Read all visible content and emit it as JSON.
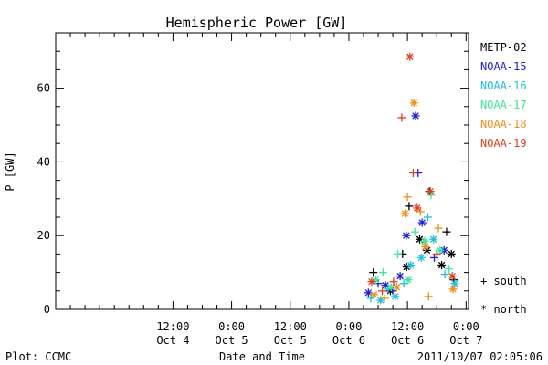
{
  "chart_data": {
    "type": "scatter",
    "title": "Hemispheric Power [GW]",
    "xlabel": "Date and Time",
    "ylabel": "P [GW]",
    "ylim": [
      0,
      75
    ],
    "yticks": [
      0,
      20,
      40,
      60
    ],
    "xlim": [
      "2011-10-03T12:00",
      "2011-10-07T00:30"
    ],
    "xticks": [
      {
        "at": "2011-10-04T12:00",
        "line1": "12:00",
        "line2": "Oct 4"
      },
      {
        "at": "2011-10-05T00:00",
        "line1": "0:00",
        "line2": "Oct 5"
      },
      {
        "at": "2011-10-05T12:00",
        "line1": "12:00",
        "line2": "Oct 5"
      },
      {
        "at": "2011-10-06T00:00",
        "line1": "0:00",
        "line2": "Oct 6"
      },
      {
        "at": "2011-10-06T12:00",
        "line1": "12:00",
        "line2": "Oct 6"
      },
      {
        "at": "2011-10-07T00:00",
        "line1": "0:00",
        "line2": "Oct 7"
      }
    ],
    "legend_placement": "right",
    "marker_legend": {
      "south": "+ south",
      "north": "* north"
    },
    "series": [
      {
        "name": "METP-02",
        "color": "#000000",
        "points": [
          {
            "x": "2011-10-06T05:00",
            "y": 10,
            "m": "+"
          },
          {
            "x": "2011-10-06T08:30",
            "y": 5,
            "m": "*"
          },
          {
            "x": "2011-10-06T11:00",
            "y": 15,
            "m": "+"
          },
          {
            "x": "2011-10-06T12:20",
            "y": 28,
            "m": "+"
          },
          {
            "x": "2011-10-06T11:50",
            "y": 11.5,
            "m": "*"
          },
          {
            "x": "2011-10-06T14:30",
            "y": 19,
            "m": "*"
          },
          {
            "x": "2011-10-06T16:30",
            "y": 32,
            "m": "+"
          },
          {
            "x": "2011-10-06T16:00",
            "y": 16,
            "m": "*"
          },
          {
            "x": "2011-10-06T19:00",
            "y": 12,
            "m": "*"
          },
          {
            "x": "2011-10-06T20:00",
            "y": 21,
            "m": "+"
          },
          {
            "x": "2011-10-06T21:00",
            "y": 15,
            "m": "*"
          },
          {
            "x": "2011-10-06T21:30",
            "y": 8,
            "m": "+"
          }
        ]
      },
      {
        "name": "NOAA-15",
        "color": "#1c1ce0",
        "points": [
          {
            "x": "2011-10-06T04:00",
            "y": 4.5,
            "m": "*"
          },
          {
            "x": "2011-10-06T06:00",
            "y": 7,
            "m": "+"
          },
          {
            "x": "2011-10-06T07:30",
            "y": 6.5,
            "m": "*"
          },
          {
            "x": "2011-10-06T09:00",
            "y": 5,
            "m": "+"
          },
          {
            "x": "2011-10-06T10:30",
            "y": 9,
            "m": "*"
          },
          {
            "x": "2011-10-06T11:45",
            "y": 20,
            "m": "*"
          },
          {
            "x": "2011-10-06T13:40",
            "y": 52.5,
            "m": "*"
          },
          {
            "x": "2011-10-06T14:10",
            "y": 37,
            "m": "+"
          },
          {
            "x": "2011-10-06T15:00",
            "y": 23.5,
            "m": "*"
          },
          {
            "x": "2011-10-06T17:30",
            "y": 14,
            "m": "+"
          },
          {
            "x": "2011-10-06T19:30",
            "y": 16,
            "m": "*"
          }
        ]
      },
      {
        "name": "NOAA-16",
        "color": "#1cc0e0",
        "points": [
          {
            "x": "2011-10-06T04:30",
            "y": 3,
            "m": "+"
          },
          {
            "x": "2011-10-06T06:30",
            "y": 2.5,
            "m": "*"
          },
          {
            "x": "2011-10-06T08:00",
            "y": 5.5,
            "m": "+"
          },
          {
            "x": "2011-10-06T09:30",
            "y": 3.5,
            "m": "*"
          },
          {
            "x": "2011-10-06T11:15",
            "y": 7,
            "m": "+"
          },
          {
            "x": "2011-10-06T12:40",
            "y": 12,
            "m": "*"
          },
          {
            "x": "2011-10-06T14:50",
            "y": 14,
            "m": "*"
          },
          {
            "x": "2011-10-06T16:10",
            "y": 25,
            "m": "+"
          },
          {
            "x": "2011-10-06T17:20",
            "y": 19,
            "m": "*"
          },
          {
            "x": "2011-10-06T19:40",
            "y": 9.5,
            "m": "+"
          },
          {
            "x": "2011-10-06T21:40",
            "y": 7,
            "m": "*"
          }
        ]
      },
      {
        "name": "NOAA-17",
        "color": "#3ce89c",
        "points": [
          {
            "x": "2011-10-06T05:30",
            "y": 8,
            "m": "*"
          },
          {
            "x": "2011-10-06T07:00",
            "y": 10,
            "m": "+"
          },
          {
            "x": "2011-10-06T08:40",
            "y": 6,
            "m": "*"
          },
          {
            "x": "2011-10-06T10:00",
            "y": 15,
            "m": "+"
          },
          {
            "x": "2011-10-06T12:10",
            "y": 8,
            "m": "*"
          },
          {
            "x": "2011-10-06T13:30",
            "y": 21,
            "m": "+"
          },
          {
            "x": "2011-10-06T15:30",
            "y": 18.5,
            "m": "*"
          },
          {
            "x": "2011-10-06T16:50",
            "y": 31,
            "m": "+"
          },
          {
            "x": "2011-10-06T18:40",
            "y": 16,
            "m": "*"
          },
          {
            "x": "2011-10-06T20:30",
            "y": 11,
            "m": "+"
          }
        ]
      },
      {
        "name": "NOAA-18",
        "color": "#f0901c",
        "points": [
          {
            "x": "2011-10-06T05:10",
            "y": 4,
            "m": "*"
          },
          {
            "x": "2011-10-06T07:20",
            "y": 3,
            "m": "+"
          },
          {
            "x": "2011-10-06T09:50",
            "y": 6,
            "m": "*"
          },
          {
            "x": "2011-10-06T11:30",
            "y": 26,
            "m": "*"
          },
          {
            "x": "2011-10-06T12:00",
            "y": 30.5,
            "m": "+"
          },
          {
            "x": "2011-10-06T13:20",
            "y": 56,
            "m": "*"
          },
          {
            "x": "2011-10-06T14:40",
            "y": 26.5,
            "m": "+"
          },
          {
            "x": "2011-10-06T15:40",
            "y": 17,
            "m": "*"
          },
          {
            "x": "2011-10-06T16:20",
            "y": 3.5,
            "m": "+"
          },
          {
            "x": "2011-10-06T18:20",
            "y": 22,
            "m": "+"
          },
          {
            "x": "2011-10-06T21:20",
            "y": 5.5,
            "m": "*"
          }
        ]
      },
      {
        "name": "NOAA-19",
        "color": "#e0401c",
        "points": [
          {
            "x": "2011-10-06T04:40",
            "y": 7.5,
            "m": "*"
          },
          {
            "x": "2011-10-06T06:50",
            "y": 5,
            "m": "+"
          },
          {
            "x": "2011-10-06T09:10",
            "y": 7.5,
            "m": "+"
          },
          {
            "x": "2011-10-06T10:50",
            "y": 52,
            "m": "+"
          },
          {
            "x": "2011-10-06T12:30",
            "y": 68.5,
            "m": "*"
          },
          {
            "x": "2011-10-06T13:10",
            "y": 37,
            "m": "+"
          },
          {
            "x": "2011-10-06T14:00",
            "y": 27.5,
            "m": "*"
          },
          {
            "x": "2011-10-06T16:40",
            "y": 32,
            "m": "*"
          },
          {
            "x": "2011-10-06T18:00",
            "y": 15,
            "m": "+"
          },
          {
            "x": "2011-10-06T21:10",
            "y": 9,
            "m": "*"
          }
        ]
      }
    ]
  },
  "footer": {
    "left": "Plot: CCMC",
    "center": "Date and Time",
    "right": "2011/10/07 02:05:06"
  }
}
